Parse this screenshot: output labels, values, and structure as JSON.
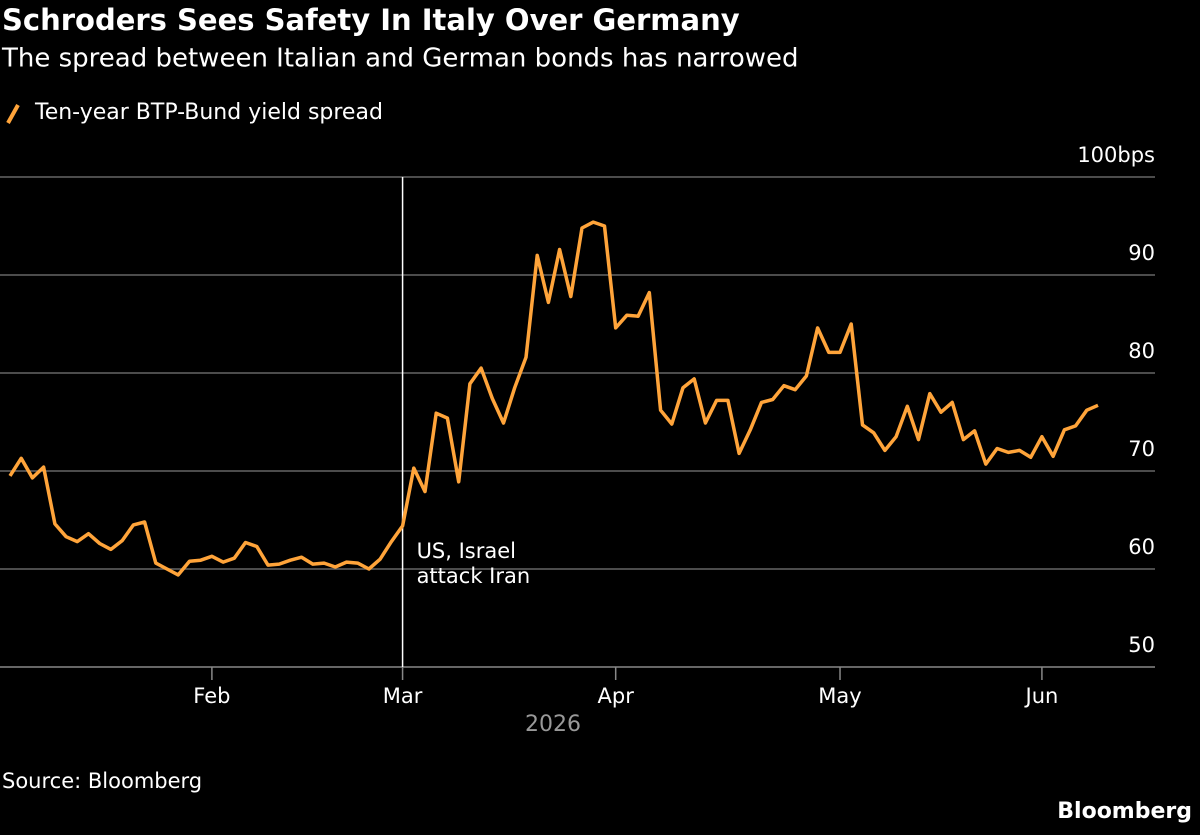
{
  "chart_data": {
    "type": "line",
    "title": "Schroders Sees Safety In Italy Over Germany",
    "subtitle": "The spread between Italian and German bonds has narrowed",
    "xlabel": "2026",
    "source": "Source: Bloomberg",
    "brand": "Bloomberg",
    "categories": [
      null,
      null,
      null,
      null,
      null,
      null,
      null,
      null,
      null,
      null,
      null,
      null,
      null,
      null,
      null,
      null,
      null,
      null,
      "Feb",
      null,
      null,
      null,
      null,
      null,
      null,
      null,
      null,
      null,
      null,
      null,
      null,
      null,
      null,
      null,
      null,
      "Mar",
      null,
      null,
      null,
      null,
      null,
      null,
      null,
      null,
      null,
      null,
      null,
      null,
      null,
      null,
      null,
      null,
      null,
      null,
      "Apr",
      null,
      null,
      null,
      null,
      null,
      null,
      null,
      null,
      null,
      null,
      null,
      null,
      null,
      null,
      null,
      null,
      null,
      null,
      null,
      "May",
      null,
      null,
      null,
      null,
      null,
      null,
      null,
      null,
      null,
      null,
      null,
      null,
      null,
      null,
      null,
      null,
      null,
      "Jun",
      null,
      null,
      null,
      null,
      null
    ],
    "series": [
      {
        "name": "Ten-year BTP-Bund yield spread",
        "color": "#ffa43a",
        "values": [
          69.5,
          71.3,
          69.3,
          70.4,
          64.6,
          63.3,
          62.8,
          63.6,
          62.6,
          62.0,
          62.9,
          64.5,
          64.8,
          60.6,
          60.0,
          59.4,
          60.8,
          60.9,
          61.3,
          60.7,
          61.1,
          62.7,
          62.3,
          60.4,
          60.5,
          60.9,
          61.2,
          60.5,
          60.6,
          60.2,
          60.7,
          60.6,
          60.0,
          61.0,
          62.8,
          64.4,
          70.3,
          67.9,
          75.9,
          75.4,
          68.9,
          78.9,
          80.5,
          77.4,
          74.9,
          78.5,
          81.6,
          92.0,
          87.2,
          92.6,
          87.8,
          94.8,
          95.4,
          95.0,
          84.6,
          85.9,
          85.8,
          88.2,
          76.2,
          74.8,
          78.5,
          79.4,
          74.9,
          77.2,
          77.2,
          71.8,
          74.2,
          77.0,
          77.3,
          78.7,
          78.3,
          79.7,
          84.6,
          82.1,
          82.1,
          85.0,
          74.7,
          73.9,
          72.1,
          73.5,
          76.6,
          73.2,
          77.9,
          76.0,
          77.0,
          73.2,
          74.1,
          70.7,
          72.3,
          71.9,
          72.1,
          71.4,
          73.5,
          71.5,
          74.2,
          74.6,
          76.2,
          76.7
        ]
      }
    ],
    "ylim": [
      50,
      100
    ],
    "yticks": [
      50,
      60,
      70,
      80,
      90,
      {
        "value": 100,
        "label": "100bps"
      }
    ],
    "grid": true,
    "annotation": {
      "x": "Mar",
      "text": [
        "US, Israel",
        "attack Iran"
      ]
    }
  }
}
